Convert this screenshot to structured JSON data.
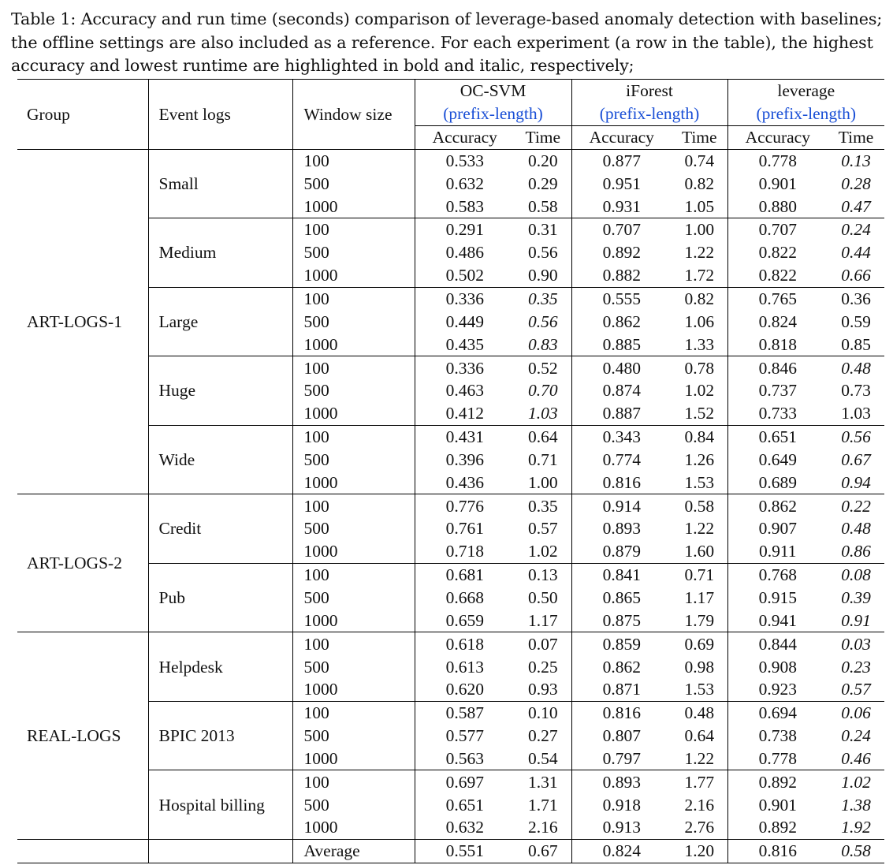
{
  "caption": "Table 1: Accuracy and run time (seconds) comparison of leverage-based anomaly detection with baselines; the offline settings are also included as a reference. For each experiment (a row in the table), the highest accuracy and lowest runtime are highlighted in bold and italic, respectively;",
  "headers": {
    "group": "Group",
    "event_logs": "Event logs",
    "window_size": "Window size",
    "methods": [
      "OC-SVM",
      "iForest",
      "leverage"
    ],
    "method_sub": "(prefix-length)",
    "accuracy": "Accuracy",
    "time": "Time"
  },
  "groups": [
    "ART-LOGS-1",
    "ART-LOGS-2",
    "REAL-LOGS"
  ],
  "logs": [
    "Small",
    "Medium",
    "Large",
    "Huge",
    "Wide",
    "Credit",
    "Pub",
    "Helpdesk",
    "BPIC 2013",
    "Hospital billing"
  ],
  "rows": [
    {
      "w": "100",
      "v": [
        "0.533",
        "0.20",
        "0.877",
        "0.74",
        "0.778",
        "0.13"
      ]
    },
    {
      "w": "500",
      "v": [
        "0.632",
        "0.29",
        "0.951",
        "0.82",
        "0.901",
        "0.28"
      ]
    },
    {
      "w": "1000",
      "v": [
        "0.583",
        "0.58",
        "0.931",
        "1.05",
        "0.880",
        "0.47"
      ]
    },
    {
      "w": "100",
      "v": [
        "0.291",
        "0.31",
        "0.707",
        "1.00",
        "0.707",
        "0.24"
      ]
    },
    {
      "w": "500",
      "v": [
        "0.486",
        "0.56",
        "0.892",
        "1.22",
        "0.822",
        "0.44"
      ]
    },
    {
      "w": "1000",
      "v": [
        "0.502",
        "0.90",
        "0.882",
        "1.72",
        "0.822",
        "0.66"
      ]
    },
    {
      "w": "100",
      "v": [
        "0.336",
        "0.35",
        "0.555",
        "0.82",
        "0.765",
        "0.36"
      ]
    },
    {
      "w": "500",
      "v": [
        "0.449",
        "0.56",
        "0.862",
        "1.06",
        "0.824",
        "0.59"
      ]
    },
    {
      "w": "1000",
      "v": [
        "0.435",
        "0.83",
        "0.885",
        "1.33",
        "0.818",
        "0.85"
      ]
    },
    {
      "w": "100",
      "v": [
        "0.336",
        "0.52",
        "0.480",
        "0.78",
        "0.846",
        "0.48"
      ]
    },
    {
      "w": "500",
      "v": [
        "0.463",
        "0.70",
        "0.874",
        "1.02",
        "0.737",
        "0.73"
      ]
    },
    {
      "w": "1000",
      "v": [
        "0.412",
        "1.03",
        "0.887",
        "1.52",
        "0.733",
        "1.03"
      ]
    },
    {
      "w": "100",
      "v": [
        "0.431",
        "0.64",
        "0.343",
        "0.84",
        "0.651",
        "0.56"
      ]
    },
    {
      "w": "500",
      "v": [
        "0.396",
        "0.71",
        "0.774",
        "1.26",
        "0.649",
        "0.67"
      ]
    },
    {
      "w": "1000",
      "v": [
        "0.436",
        "1.00",
        "0.816",
        "1.53",
        "0.689",
        "0.94"
      ]
    },
    {
      "w": "100",
      "v": [
        "0.776",
        "0.35",
        "0.914",
        "0.58",
        "0.862",
        "0.22"
      ]
    },
    {
      "w": "500",
      "v": [
        "0.761",
        "0.57",
        "0.893",
        "1.22",
        "0.907",
        "0.48"
      ]
    },
    {
      "w": "1000",
      "v": [
        "0.718",
        "1.02",
        "0.879",
        "1.60",
        "0.911",
        "0.86"
      ]
    },
    {
      "w": "100",
      "v": [
        "0.681",
        "0.13",
        "0.841",
        "0.71",
        "0.768",
        "0.08"
      ]
    },
    {
      "w": "500",
      "v": [
        "0.668",
        "0.50",
        "0.865",
        "1.17",
        "0.915",
        "0.39"
      ]
    },
    {
      "w": "1000",
      "v": [
        "0.659",
        "1.17",
        "0.875",
        "1.79",
        "0.941",
        "0.91"
      ]
    },
    {
      "w": "100",
      "v": [
        "0.618",
        "0.07",
        "0.859",
        "0.69",
        "0.844",
        "0.03"
      ]
    },
    {
      "w": "500",
      "v": [
        "0.613",
        "0.25",
        "0.862",
        "0.98",
        "0.908",
        "0.23"
      ]
    },
    {
      "w": "1000",
      "v": [
        "0.620",
        "0.93",
        "0.871",
        "1.53",
        "0.923",
        "0.57"
      ]
    },
    {
      "w": "100",
      "v": [
        "0.587",
        "0.10",
        "0.816",
        "0.48",
        "0.694",
        "0.06"
      ]
    },
    {
      "w": "500",
      "v": [
        "0.577",
        "0.27",
        "0.807",
        "0.64",
        "0.738",
        "0.24"
      ]
    },
    {
      "w": "1000",
      "v": [
        "0.563",
        "0.54",
        "0.797",
        "1.22",
        "0.778",
        "0.46"
      ]
    },
    {
      "w": "100",
      "v": [
        "0.697",
        "1.31",
        "0.893",
        "1.77",
        "0.892",
        "1.02"
      ]
    },
    {
      "w": "500",
      "v": [
        "0.651",
        "1.71",
        "0.918",
        "2.16",
        "0.901",
        "1.38"
      ]
    },
    {
      "w": "1000",
      "v": [
        "0.632",
        "2.16",
        "0.913",
        "2.76",
        "0.892",
        "1.92"
      ]
    }
  ],
  "bold_cells": [
    [
      0,
      2
    ],
    [
      1,
      2
    ],
    [
      2,
      2
    ],
    [
      3,
      2
    ],
    [
      4,
      2
    ],
    [
      5,
      2
    ],
    [
      6,
      4
    ],
    [
      7,
      2
    ],
    [
      8,
      2
    ],
    [
      9,
      4
    ],
    [
      10,
      2
    ],
    [
      11,
      2
    ],
    [
      12,
      4
    ],
    [
      13,
      2
    ],
    [
      14,
      2
    ],
    [
      15,
      2
    ],
    [
      16,
      4
    ],
    [
      17,
      4
    ],
    [
      18,
      2
    ],
    [
      19,
      4
    ],
    [
      20,
      4
    ],
    [
      21,
      2
    ],
    [
      22,
      4
    ],
    [
      23,
      4
    ],
    [
      24,
      2
    ],
    [
      25,
      2
    ],
    [
      26,
      2
    ],
    [
      27,
      2
    ],
    [
      28,
      2
    ],
    [
      29,
      2
    ]
  ],
  "italic_cells": [
    [
      0,
      5
    ],
    [
      1,
      5
    ],
    [
      2,
      5
    ],
    [
      3,
      5
    ],
    [
      4,
      5
    ],
    [
      5,
      5
    ],
    [
      6,
      1
    ],
    [
      7,
      1
    ],
    [
      8,
      1
    ],
    [
      9,
      5
    ],
    [
      10,
      1
    ],
    [
      11,
      1
    ],
    [
      12,
      5
    ],
    [
      13,
      5
    ],
    [
      14,
      5
    ],
    [
      15,
      5
    ],
    [
      16,
      5
    ],
    [
      17,
      5
    ],
    [
      18,
      5
    ],
    [
      19,
      5
    ],
    [
      20,
      5
    ],
    [
      21,
      5
    ],
    [
      22,
      5
    ],
    [
      23,
      5
    ],
    [
      24,
      5
    ],
    [
      25,
      5
    ],
    [
      26,
      5
    ],
    [
      27,
      5
    ],
    [
      28,
      5
    ],
    [
      29,
      5
    ]
  ],
  "average": {
    "label": "Average",
    "v": [
      "0.551",
      "0.67",
      "0.824",
      "1.20",
      "0.816",
      "0.58"
    ],
    "bold": 2,
    "italic": 5
  }
}
